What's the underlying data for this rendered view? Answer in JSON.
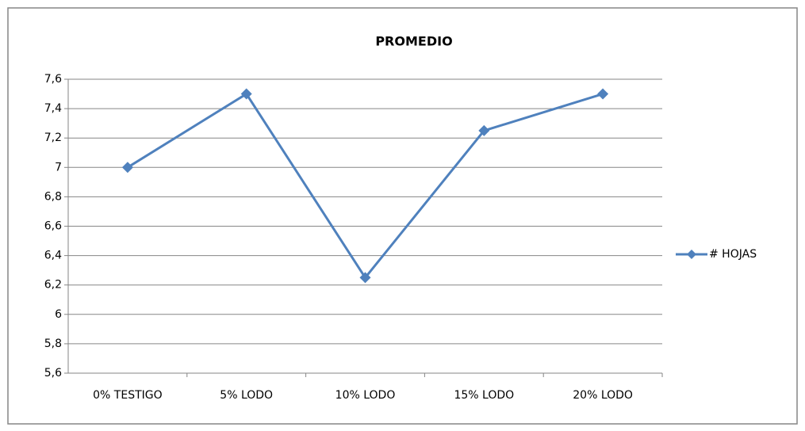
{
  "chart_data": {
    "type": "line",
    "title": "PROMEDIO",
    "categories": [
      "0% TESTIGO",
      "5% LODO",
      "10% LODO",
      "15% LODO",
      "20% LODO"
    ],
    "series": [
      {
        "name": "# HOJAS",
        "color": "#4f81bd",
        "values": [
          7,
          7.5,
          6.25,
          7.25,
          7.5
        ]
      }
    ],
    "ylim": [
      5.6,
      7.6
    ],
    "yticks": [
      {
        "value": 5.6,
        "label": "5,6"
      },
      {
        "value": 5.8,
        "label": "5,8"
      },
      6,
      {
        "value": 6.2,
        "label": "6,2"
      },
      {
        "value": 6.4,
        "label": "6,4"
      },
      {
        "value": 6.6,
        "label": "6,6"
      },
      {
        "value": 6.8,
        "label": "6,8"
      },
      7,
      {
        "value": 7.2,
        "label": "7,2"
      },
      {
        "value": 7.4,
        "label": "7,4"
      },
      {
        "value": 7.6,
        "label": "7,6"
      }
    ],
    "grid": true,
    "legend": "right"
  }
}
